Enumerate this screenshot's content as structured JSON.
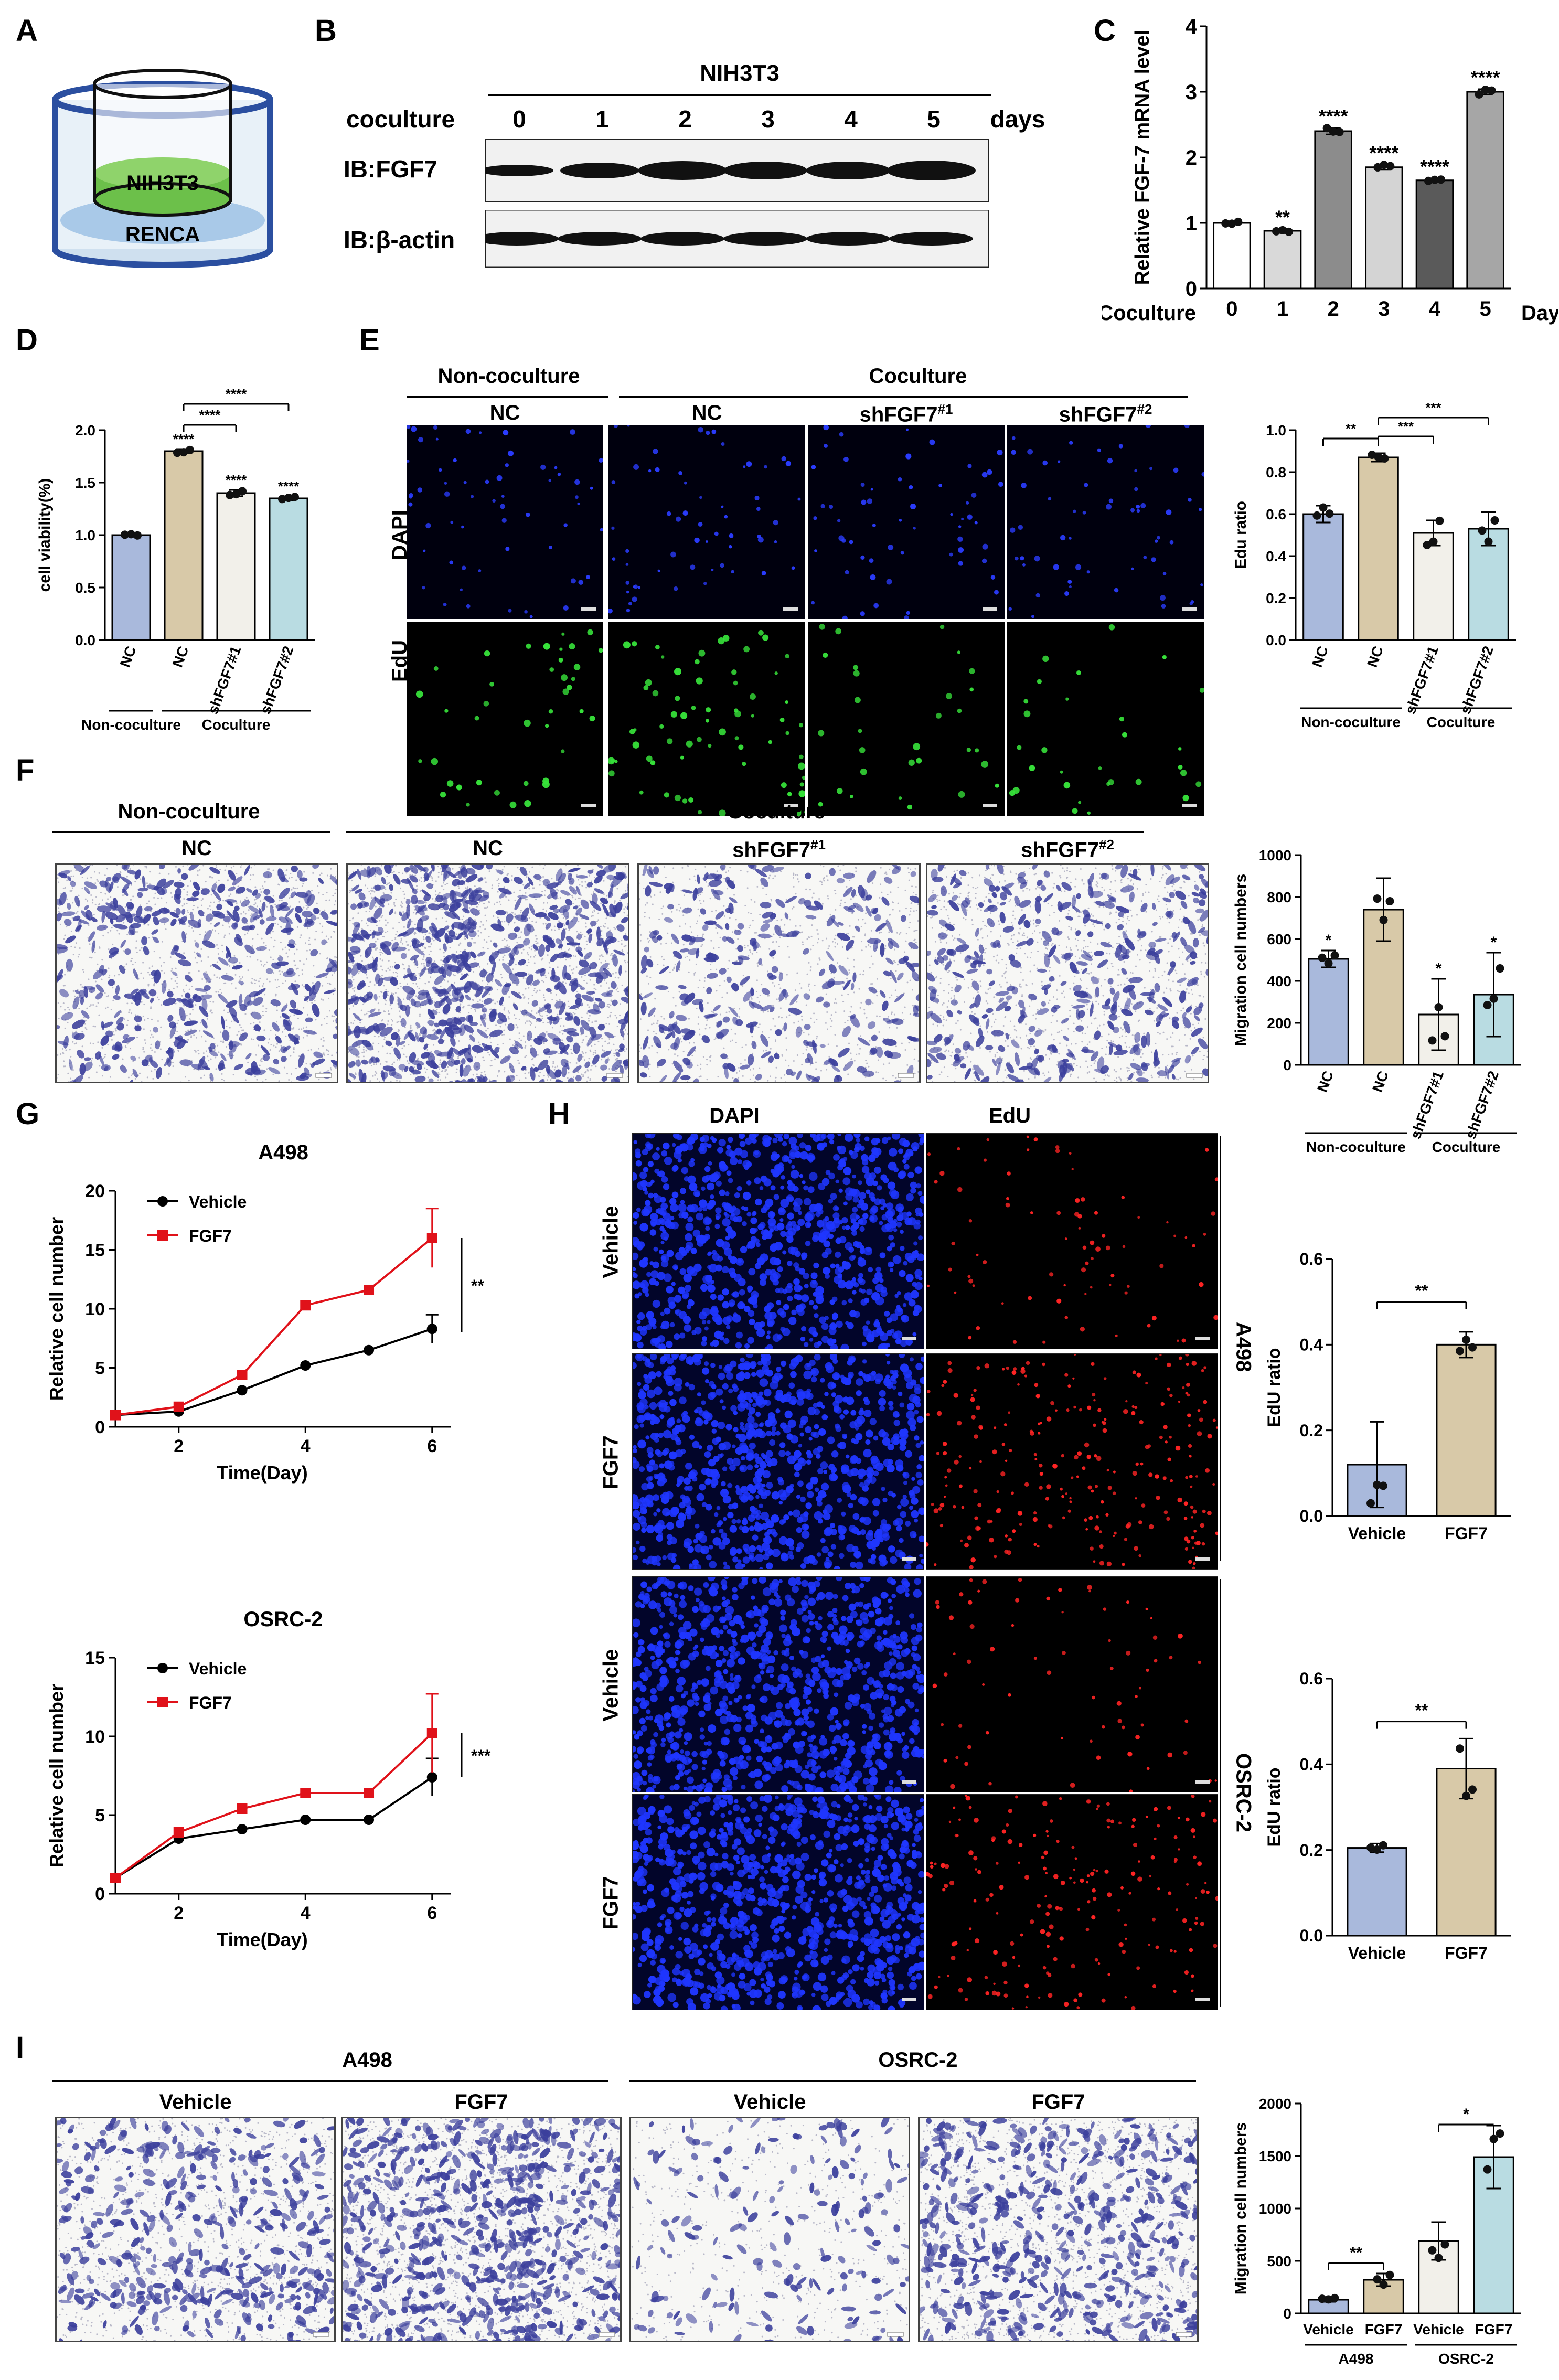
{
  "panels": {
    "A": {
      "label": "A",
      "upper": "NIH3T3",
      "lower": "RENCA"
    },
    "B": {
      "label": "B",
      "cell": "NIH3T3",
      "row_label": "coculture",
      "days": [
        "0",
        "1",
        "2",
        "3",
        "4",
        "5"
      ],
      "unit": "days",
      "blots": [
        "IB:FGF7",
        "IB:β-actin"
      ]
    },
    "C": {
      "label": "C"
    },
    "D": {
      "label": "D"
    },
    "E": {
      "label": "E",
      "groups": [
        "Non-coculture",
        "Coculture"
      ],
      "columns": [
        "NC",
        "NC",
        "shFGF7",
        "shFGF7"
      ],
      "sups": [
        "",
        "",
        "#1",
        "#2"
      ],
      "rows": [
        "DAPI",
        "EdU"
      ]
    },
    "F": {
      "label": "F",
      "groups": [
        "Non-coculture",
        "Coculture"
      ],
      "columns": [
        "NC",
        "NC",
        "shFGF7",
        "shFGF7"
      ],
      "sups": [
        "",
        "",
        "#1",
        "#2"
      ]
    },
    "G": {
      "label": "G"
    },
    "H": {
      "label": "H",
      "cols": [
        "DAPI",
        "EdU"
      ],
      "rows": [
        "Vehicle",
        "FGF7",
        "Vehicle",
        "FGF7"
      ],
      "side": [
        "A498",
        "OSRC-2"
      ]
    },
    "I": {
      "label": "I",
      "groups": [
        "A498",
        "OSRC-2"
      ],
      "columns": [
        "Vehicle",
        "FGF7",
        "Vehicle",
        "FGF7"
      ]
    }
  },
  "chart_data": [
    {
      "id": "C",
      "type": "bar",
      "ylabel": "Relative FGF-7 mRNA level",
      "xlabel_left": "Coculture",
      "xlabel_right": "Days",
      "categories": [
        "0",
        "1",
        "2",
        "3",
        "4",
        "5"
      ],
      "values": [
        1.0,
        0.88,
        2.4,
        1.85,
        1.65,
        3.0
      ],
      "ylim": [
        0,
        4
      ],
      "yticks": [
        "0",
        "1",
        "2",
        "3",
        "4"
      ],
      "significance": [
        "",
        "**",
        "****",
        "****",
        "****",
        "****"
      ],
      "colors": [
        "#ffffff",
        "#d9d9d9",
        "#8c8c8c",
        "#d4d4d4",
        "#5a5a5a",
        "#a6a6a6"
      ]
    },
    {
      "id": "D",
      "type": "bar",
      "ylabel": "cell viability(%)",
      "categories": [
        "NC",
        "NC",
        "shFGF7#1",
        "shFGF7#2"
      ],
      "values": [
        1.0,
        1.8,
        1.4,
        1.35
      ],
      "ylim": [
        0,
        2.0
      ],
      "yticks": [
        "0.0",
        "0.5",
        "1.0",
        "1.5",
        "2.0"
      ],
      "significance": [
        "",
        "****",
        "****",
        "****"
      ],
      "brackets": [
        "****",
        "****"
      ],
      "groups": [
        "Non-coculture",
        "Coculture"
      ],
      "colors": [
        "#a9b9dc",
        "#d8c9a8",
        "#f2f0ea",
        "#b9dce2"
      ]
    },
    {
      "id": "E",
      "type": "bar",
      "ylabel": "Edu ratio",
      "categories": [
        "NC",
        "NC",
        "shFGF7#1",
        "shFGF7#2"
      ],
      "values": [
        0.6,
        0.87,
        0.51,
        0.53
      ],
      "ylim": [
        0,
        1.0
      ],
      "yticks": [
        "0.0",
        "0.2",
        "0.4",
        "0.6",
        "0.8",
        "1.0"
      ],
      "brackets": [
        "**",
        "***",
        "***"
      ],
      "groups": [
        "Non-coculture",
        "Coculture"
      ],
      "colors": [
        "#a9b9dc",
        "#d8c9a8",
        "#f2f0ea",
        "#b9dce2"
      ]
    },
    {
      "id": "F",
      "type": "bar",
      "ylabel": "Migration cell numbers",
      "categories": [
        "NC",
        "NC",
        "shFGF7#1",
        "shFGF7#2"
      ],
      "values": [
        505,
        740,
        240,
        335
      ],
      "ylim": [
        0,
        1000
      ],
      "yticks": [
        "0",
        "200",
        "400",
        "600",
        "800",
        "1000"
      ],
      "significance": [
        "*",
        "",
        "*",
        "*"
      ],
      "groups": [
        "Non-coculture",
        "Coculture"
      ],
      "colors": [
        "#a9b9dc",
        "#d8c9a8",
        "#f2f0ea",
        "#b9dce2"
      ]
    },
    {
      "id": "G1",
      "type": "line",
      "title": "A498",
      "xlabel": "Time(Day)",
      "ylabel": "Relative cell number",
      "ylim": [
        0,
        20
      ],
      "yticks": [
        "0",
        "5",
        "10",
        "15",
        "20"
      ],
      "xticks": [
        "2",
        "4",
        "6"
      ],
      "x": [
        1,
        2,
        3,
        4,
        5,
        6
      ],
      "series": [
        {
          "name": "Vehicle",
          "values": [
            1.0,
            1.3,
            3.1,
            5.2,
            6.5,
            8.3
          ]
        },
        {
          "name": "FGF7",
          "values": [
            1.0,
            1.7,
            4.4,
            10.3,
            11.6,
            16.0
          ]
        }
      ],
      "significance": "**"
    },
    {
      "id": "G2",
      "type": "line",
      "title": "OSRC-2",
      "xlabel": "Time(Day)",
      "ylabel": "Relative cell number",
      "ylim": [
        0,
        15
      ],
      "yticks": [
        "0",
        "5",
        "10",
        "15"
      ],
      "xticks": [
        "2",
        "4",
        "6"
      ],
      "x": [
        1,
        2,
        3,
        4,
        5,
        6
      ],
      "series": [
        {
          "name": "Vehicle",
          "values": [
            1.0,
            3.5,
            4.1,
            4.7,
            4.7,
            7.4
          ]
        },
        {
          "name": "FGF7",
          "values": [
            1.0,
            3.9,
            5.4,
            6.4,
            6.4,
            10.2
          ]
        }
      ],
      "significance": "***"
    },
    {
      "id": "H1",
      "type": "bar",
      "ylabel": "EdU ratio",
      "categories": [
        "Vehicle",
        "FGF7"
      ],
      "values": [
        0.12,
        0.4
      ],
      "ylim": [
        0,
        0.6
      ],
      "yticks": [
        "0.0",
        "0.2",
        "0.4",
        "0.6"
      ],
      "brackets": [
        "**"
      ],
      "colors": [
        "#a9b9dc",
        "#d8c9a8"
      ]
    },
    {
      "id": "H2",
      "type": "bar",
      "ylabel": "EdU ratio",
      "categories": [
        "Vehicle",
        "FGF7"
      ],
      "values": [
        0.205,
        0.39
      ],
      "ylim": [
        0,
        0.6
      ],
      "yticks": [
        "0.0",
        "0.2",
        "0.4",
        "0.6"
      ],
      "brackets": [
        "**"
      ],
      "colors": [
        "#a9b9dc",
        "#d8c9a8"
      ]
    },
    {
      "id": "I",
      "type": "bar",
      "ylabel": "Migration cell numbers",
      "categories": [
        "Vehicle",
        "FGF7",
        "Vehicle",
        "FGF7"
      ],
      "values": [
        130,
        320,
        690,
        1490
      ],
      "ylim": [
        0,
        2000
      ],
      "yticks": [
        "0",
        "500",
        "1000",
        "1500",
        "2000"
      ],
      "brackets": [
        "**",
        "*"
      ],
      "groups": [
        "A498",
        "OSRC-2"
      ],
      "colors": [
        "#a9b9dc",
        "#d8c9a8",
        "#f2f0ea",
        "#b9dce2"
      ]
    }
  ]
}
